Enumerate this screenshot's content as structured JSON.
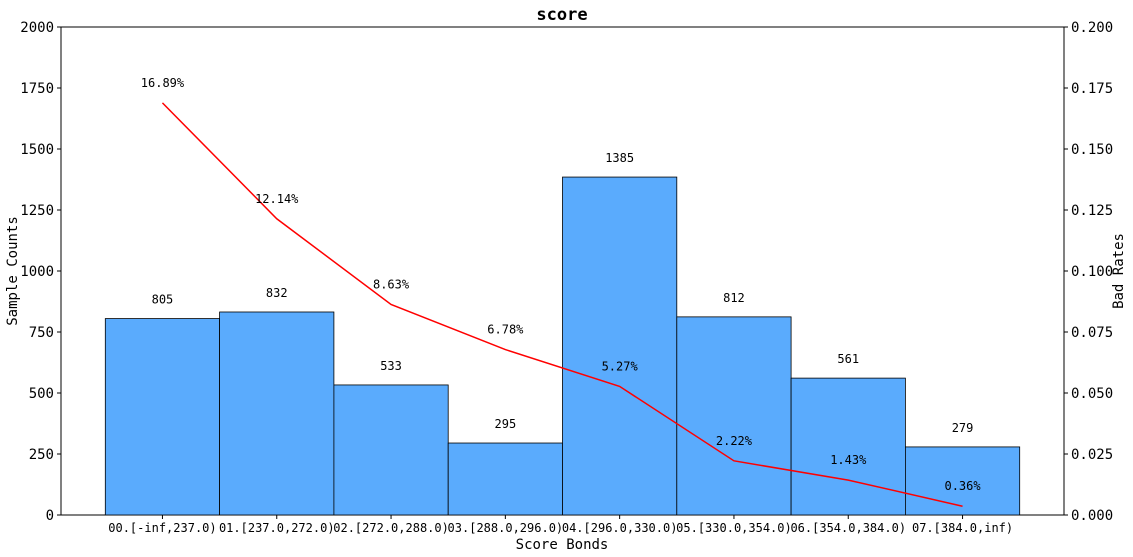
{
  "chart_data": {
    "type": "bar",
    "title": "score",
    "xlabel": "Score Bonds",
    "ylabel": "Sample Counts",
    "y2label": "Bad Rates",
    "ylim": [
      0,
      2000
    ],
    "y2lim": [
      0,
      0.2
    ],
    "yticks": [
      "0",
      "250",
      "500",
      "750",
      "1000",
      "1250",
      "1500",
      "1750",
      "2000"
    ],
    "y2ticks": [
      "0.000",
      "0.025",
      "0.050",
      "0.075",
      "0.100",
      "0.125",
      "0.150",
      "0.175",
      "0.200"
    ],
    "categories": [
      "00.[-inf,237.0)",
      "01.[237.0,272.0)",
      "02.[272.0,288.0)",
      "03.[288.0,296.0)",
      "04.[296.0,330.0)",
      "05.[330.0,354.0)",
      "06.[354.0,384.0)",
      "07.[384.0,inf)"
    ],
    "series": [
      {
        "type": "bar",
        "axis": "left",
        "values": [
          805,
          832,
          533,
          295,
          1385,
          812,
          561,
          279
        ],
        "labels": [
          "805",
          "832",
          "533",
          "295",
          "1385",
          "812",
          "561",
          "279"
        ],
        "color": "#5aabfd",
        "edge_color": "#000000"
      },
      {
        "type": "line",
        "axis": "right",
        "values": [
          0.1689,
          0.1214,
          0.0863,
          0.0678,
          0.0527,
          0.0222,
          0.0143,
          0.0036
        ],
        "labels": [
          "16.89%",
          "12.14%",
          "8.63%",
          "6.78%",
          "5.27%",
          "2.22%",
          "1.43%",
          "0.36%"
        ],
        "color": "#ff0000"
      }
    ]
  }
}
